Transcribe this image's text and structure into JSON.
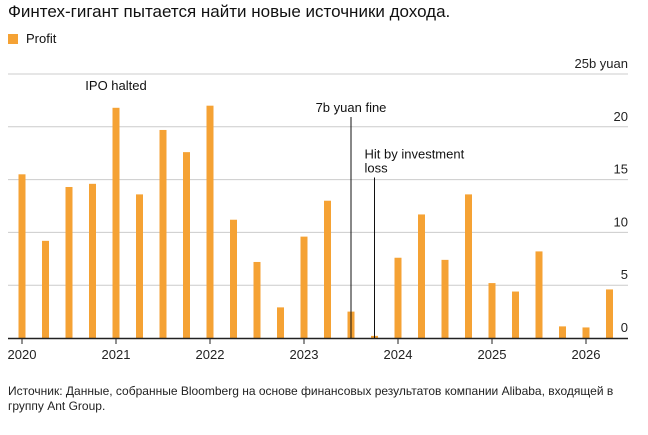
{
  "title": "Финтех-гигант пытается найти новые источники дохода.",
  "source": "Источник: Данные, собранные Bloomberg на основе финансовых результатов компании Alibaba, входящей в группу Ant Group.",
  "colors": {
    "bar": "#f5a234",
    "grid": "#cccccc",
    "axis": "#222222"
  },
  "chart_data": {
    "type": "bar",
    "series": [
      {
        "name": "Profit",
        "x": [
          2020.0,
          2020.25,
          2020.5,
          2020.75,
          2021.0,
          2021.25,
          2021.5,
          2021.75,
          2022.0,
          2022.25,
          2022.5,
          2022.75,
          2023.0,
          2023.25,
          2023.5,
          2023.75,
          2024.0,
          2024.25,
          2024.5,
          2024.75,
          2025.0,
          2025.25,
          2025.5,
          2025.75,
          2026.0,
          2026.25
        ],
        "values": [
          15.5,
          9.2,
          14.3,
          14.6,
          21.8,
          13.6,
          19.7,
          17.6,
          22.0,
          11.2,
          7.2,
          2.9,
          9.6,
          13.0,
          2.5,
          0.2,
          7.6,
          11.7,
          7.4,
          13.6,
          5.2,
          4.4,
          8.2,
          1.1,
          1.0,
          4.6
        ]
      }
    ],
    "x_tick_labels": [
      "2020",
      "2021",
      "2022",
      "2023",
      "2024",
      "2025",
      "2026"
    ],
    "x_ticks": [
      2020,
      2021,
      2022,
      2023,
      2024,
      2025,
      2026
    ],
    "y_ticks": [
      0,
      5,
      10,
      15,
      20,
      25
    ],
    "y_tick_labels": [
      "0",
      "5",
      "10",
      "15",
      "20",
      "25b yuan"
    ],
    "ylim": [
      0,
      25
    ],
    "xlim": [
      2019.9,
      2026.35
    ],
    "grid": true,
    "legend_position": "top-left",
    "annotations": [
      {
        "text": "IPO halted",
        "x": 2021.0,
        "y_top": 23.5,
        "line": false
      },
      {
        "text": "7b yuan fine",
        "x": 2023.5,
        "y_top": 21.4,
        "line": true
      },
      {
        "text": "Hit by investment loss",
        "x": 2023.75,
        "y_top": 17.0,
        "line": true
      }
    ]
  }
}
